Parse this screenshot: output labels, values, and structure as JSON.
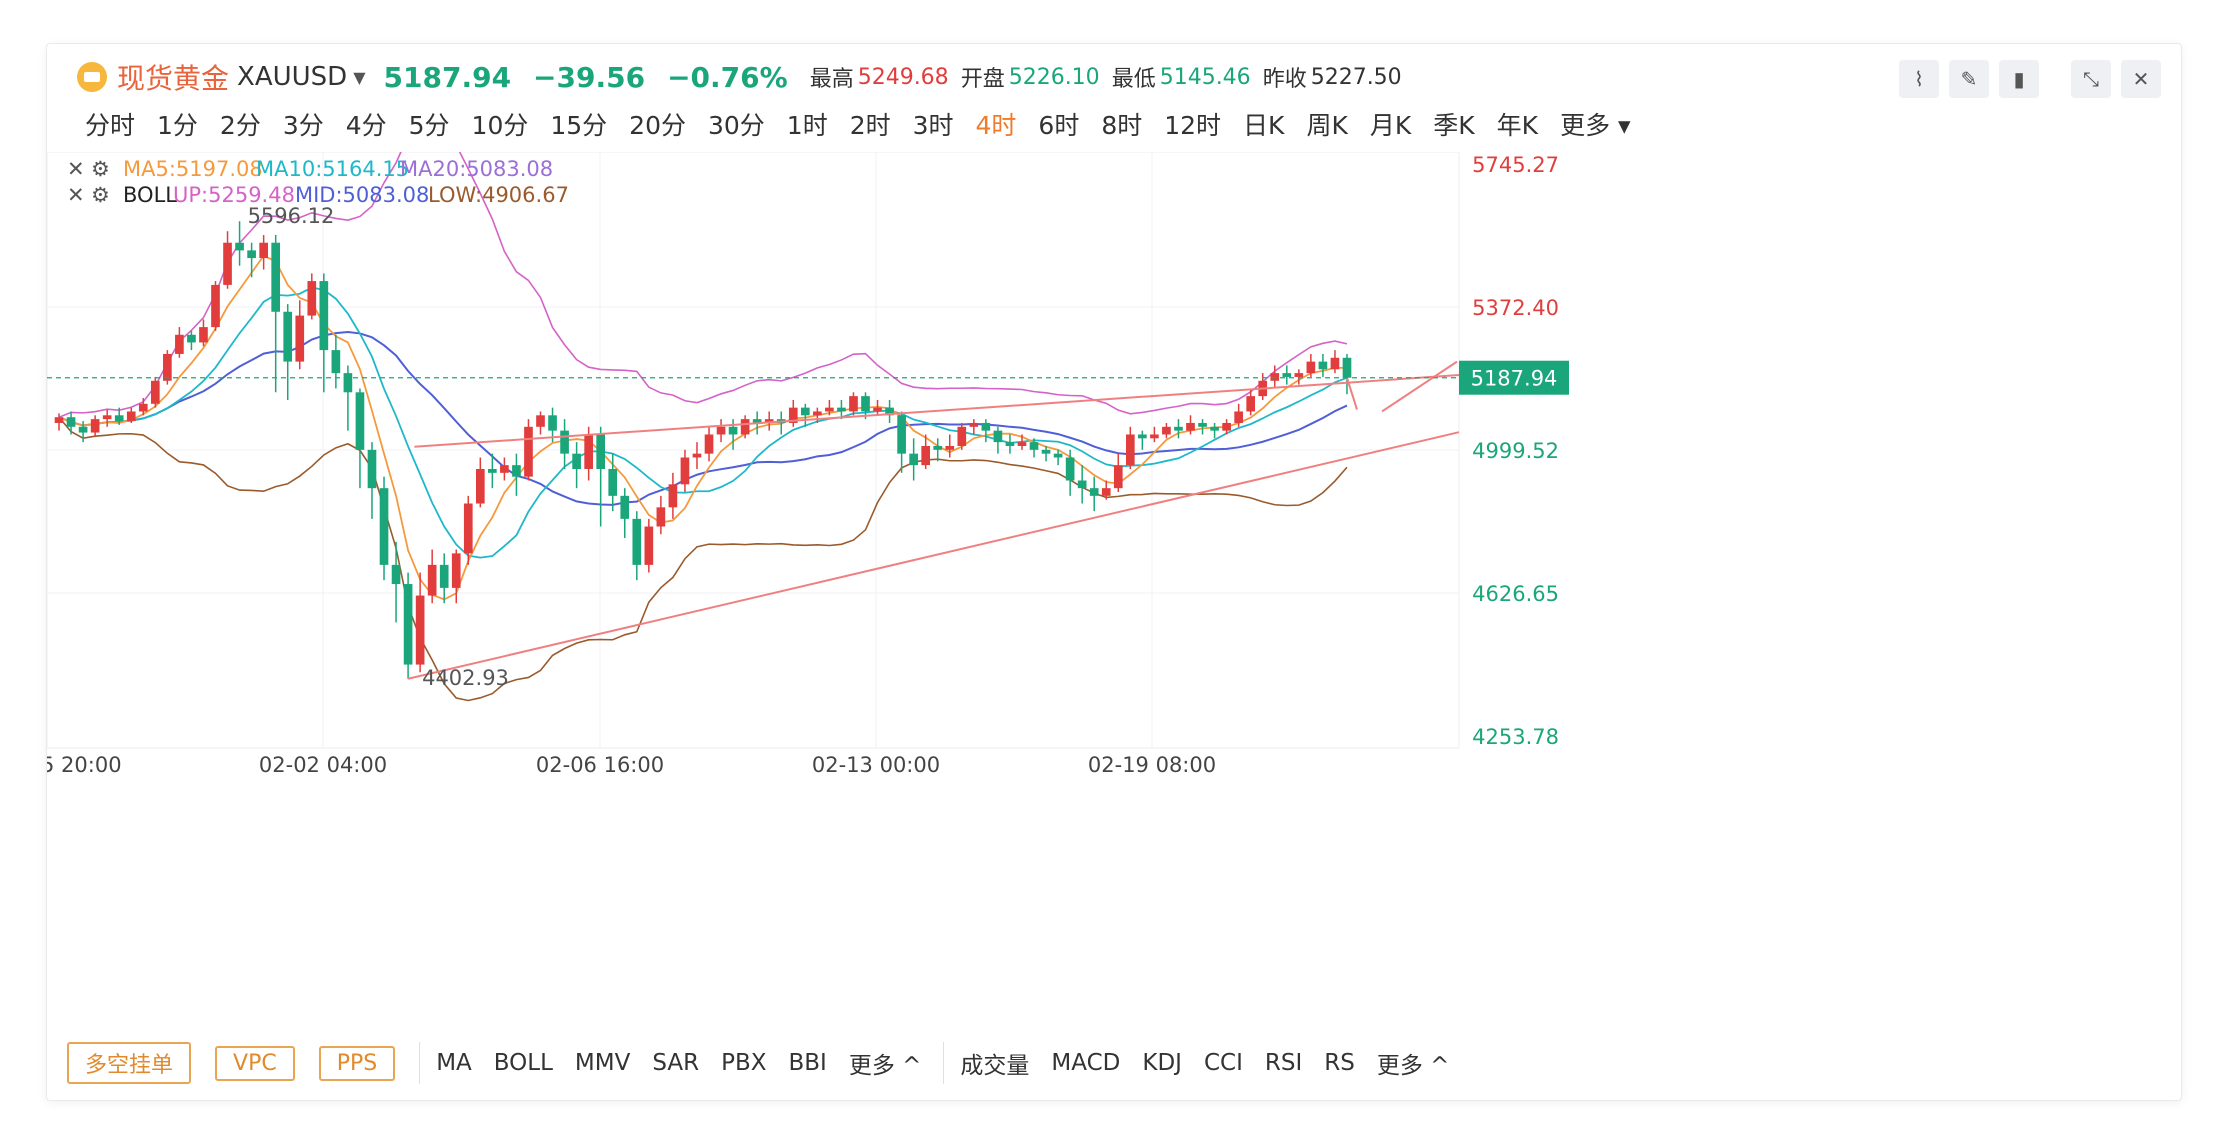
{
  "header": {
    "title": "现货黄金",
    "symbol": "XAUUSD",
    "last_price": "5187.94",
    "change": "−39.56",
    "change_pct": "−0.76%",
    "high_label": "最高",
    "high": "5249.68",
    "open_label": "开盘",
    "open": "5226.10",
    "low_label": "最低",
    "low": "5145.46",
    "prev_close_label": "昨收",
    "prev_close": "5227.50"
  },
  "timeframes": [
    "分时",
    "1分",
    "2分",
    "3分",
    "4分",
    "5分",
    "10分",
    "15分",
    "20分",
    "30分",
    "1时",
    "2时",
    "3时",
    "4时",
    "6时",
    "8时",
    "12时",
    "日K",
    "周K",
    "月K",
    "季K",
    "年K",
    "更多"
  ],
  "active_timeframe": "4时",
  "indicators": {
    "ma_legend": [
      "MA5:5197.08",
      "MA10:5164.15",
      "MA20:5083.08"
    ],
    "boll_name": "BOLL",
    "boll_legend": [
      "UP:5259.48",
      "MID:5083.08",
      "LOW:4906.67"
    ]
  },
  "bottom_bar": {
    "buttons": [
      "多空挂单",
      "VPC",
      "PPS"
    ],
    "main_indicators": [
      "MA",
      "BOLL",
      "MMV",
      "SAR",
      "PBX",
      "BBI",
      "更多 ^"
    ],
    "sub_indicators": [
      "成交量",
      "MACD",
      "KDJ",
      "CCI",
      "RSI",
      "RS",
      "更多 ^"
    ]
  },
  "colors": {
    "up": "#e23d3d",
    "down": "#1aa67a",
    "ma5": "#f59a3c",
    "ma10": "#1fb8c9",
    "ma20": "#9b6fd6",
    "boll_up": "#d462c8",
    "boll_mid": "#4f5fd6",
    "boll_low": "#9a5a2c",
    "trend": "#f08080"
  },
  "chart_data": {
    "type": "candlestick",
    "x_ticks": [
      "5 20:00",
      "02-02 04:00",
      "02-06 16:00",
      "02-13 00:00",
      "02-19 08:00"
    ],
    "y_ticks": [
      5745.27,
      5372.4,
      4999.52,
      4626.65,
      4253.78
    ],
    "y_tick_colors": [
      "up",
      "up",
      "down",
      "down",
      "down"
    ],
    "ylim": [
      4253.78,
      5745.27
    ],
    "current_price": "5187.94",
    "annotations": {
      "max": "5596.12",
      "min": "4402.93"
    },
    "candles": [
      [
        5070,
        5085,
        5050,
        5095
      ],
      [
        5085,
        5060,
        5040,
        5100
      ],
      [
        5060,
        5045,
        5020,
        5075
      ],
      [
        5045,
        5080,
        5035,
        5090
      ],
      [
        5080,
        5090,
        5060,
        5105
      ],
      [
        5090,
        5075,
        5065,
        5110
      ],
      [
        5075,
        5100,
        5070,
        5110
      ],
      [
        5100,
        5120,
        5090,
        5135
      ],
      [
        5120,
        5180,
        5110,
        5190
      ],
      [
        5180,
        5250,
        5170,
        5260
      ],
      [
        5250,
        5300,
        5240,
        5320
      ],
      [
        5300,
        5280,
        5260,
        5310
      ],
      [
        5280,
        5320,
        5270,
        5340
      ],
      [
        5320,
        5430,
        5310,
        5440
      ],
      [
        5430,
        5540,
        5420,
        5570
      ],
      [
        5540,
        5520,
        5480,
        5596
      ],
      [
        5520,
        5500,
        5450,
        5540
      ],
      [
        5500,
        5540,
        5470,
        5560
      ],
      [
        5540,
        5360,
        5150,
        5560
      ],
      [
        5360,
        5230,
        5130,
        5380
      ],
      [
        5230,
        5350,
        5210,
        5390
      ],
      [
        5350,
        5440,
        5340,
        5460
      ],
      [
        5440,
        5260,
        5150,
        5460
      ],
      [
        5260,
        5200,
        5160,
        5300
      ],
      [
        5200,
        5150,
        5050,
        5220
      ],
      [
        5150,
        5000,
        4900,
        5160
      ],
      [
        5000,
        4900,
        4820,
        5020
      ],
      [
        4900,
        4700,
        4660,
        4930
      ],
      [
        4700,
        4650,
        4550,
        4760
      ],
      [
        4650,
        4440,
        4403,
        4680
      ],
      [
        4440,
        4620,
        4420,
        4680
      ],
      [
        4620,
        4700,
        4600,
        4740
      ],
      [
        4700,
        4640,
        4600,
        4730
      ],
      [
        4640,
        4730,
        4600,
        4740
      ],
      [
        4730,
        4860,
        4700,
        4880
      ],
      [
        4860,
        4950,
        4850,
        4980
      ],
      [
        4950,
        4940,
        4900,
        4990
      ],
      [
        4940,
        4960,
        4920,
        4980
      ],
      [
        4960,
        4930,
        4880,
        4990
      ],
      [
        4930,
        5060,
        4920,
        5080
      ],
      [
        5060,
        5090,
        5040,
        5100
      ],
      [
        5090,
        5050,
        5020,
        5110
      ],
      [
        5050,
        4990,
        4950,
        5080
      ],
      [
        4990,
        4950,
        4900,
        5020
      ],
      [
        4950,
        5040,
        4920,
        5060
      ],
      [
        5040,
        4950,
        4800,
        5060
      ],
      [
        4950,
        4880,
        4840,
        4990
      ],
      [
        4880,
        4820,
        4770,
        4900
      ],
      [
        4820,
        4700,
        4660,
        4840
      ],
      [
        4700,
        4800,
        4680,
        4820
      ],
      [
        4800,
        4850,
        4780,
        4880
      ],
      [
        4850,
        4910,
        4820,
        4940
      ],
      [
        4910,
        4980,
        4890,
        5000
      ],
      [
        4980,
        4990,
        4950,
        5020
      ],
      [
        4990,
        5040,
        4970,
        5060
      ],
      [
        5040,
        5060,
        5020,
        5080
      ],
      [
        5060,
        5040,
        5000,
        5080
      ],
      [
        5040,
        5080,
        5030,
        5090
      ],
      [
        5080,
        5070,
        5040,
        5100
      ],
      [
        5070,
        5080,
        5050,
        5100
      ],
      [
        5080,
        5070,
        5040,
        5100
      ],
      [
        5070,
        5110,
        5060,
        5130
      ],
      [
        5110,
        5090,
        5060,
        5120
      ],
      [
        5090,
        5100,
        5070,
        5110
      ],
      [
        5100,
        5110,
        5090,
        5130
      ],
      [
        5110,
        5100,
        5080,
        5130
      ],
      [
        5100,
        5140,
        5090,
        5150
      ],
      [
        5140,
        5100,
        5080,
        5150
      ],
      [
        5100,
        5110,
        5090,
        5130
      ],
      [
        5110,
        5090,
        5070,
        5130
      ],
      [
        5090,
        4990,
        4940,
        5100
      ],
      [
        4990,
        4960,
        4920,
        5030
      ],
      [
        4960,
        5010,
        4950,
        5040
      ],
      [
        5010,
        5000,
        4970,
        5030
      ],
      [
        5000,
        5010,
        4980,
        5040
      ],
      [
        5010,
        5060,
        5000,
        5070
      ],
      [
        5060,
        5070,
        5040,
        5080
      ],
      [
        5070,
        5050,
        5020,
        5080
      ],
      [
        5050,
        5020,
        4990,
        5060
      ],
      [
        5020,
        5010,
        4990,
        5040
      ],
      [
        5010,
        5020,
        5000,
        5040
      ],
      [
        5020,
        5000,
        4980,
        5030
      ],
      [
        5000,
        4990,
        4970,
        5010
      ],
      [
        4990,
        4980,
        4960,
        5000
      ],
      [
        4980,
        4920,
        4880,
        5000
      ],
      [
        4920,
        4900,
        4860,
        4960
      ],
      [
        4900,
        4880,
        4840,
        4930
      ],
      [
        4880,
        4900,
        4870,
        4920
      ],
      [
        4900,
        4960,
        4890,
        4990
      ],
      [
        4960,
        5040,
        4950,
        5060
      ],
      [
        5040,
        5030,
        5000,
        5050
      ],
      [
        5030,
        5040,
        5020,
        5060
      ],
      [
        5040,
        5060,
        5030,
        5070
      ],
      [
        5060,
        5050,
        5030,
        5080
      ],
      [
        5050,
        5070,
        5040,
        5090
      ],
      [
        5070,
        5060,
        5040,
        5080
      ],
      [
        5060,
        5050,
        5030,
        5070
      ],
      [
        5050,
        5070,
        5040,
        5080
      ],
      [
        5070,
        5100,
        5060,
        5120
      ],
      [
        5100,
        5140,
        5090,
        5160
      ],
      [
        5140,
        5180,
        5130,
        5200
      ],
      [
        5180,
        5200,
        5160,
        5220
      ],
      [
        5200,
        5190,
        5170,
        5220
      ],
      [
        5190,
        5200,
        5170,
        5210
      ],
      [
        5200,
        5230,
        5190,
        5250
      ],
      [
        5230,
        5210,
        5190,
        5250
      ],
      [
        5210,
        5240,
        5200,
        5260
      ],
      [
        5240,
        5188,
        5145,
        5250
      ]
    ]
  }
}
